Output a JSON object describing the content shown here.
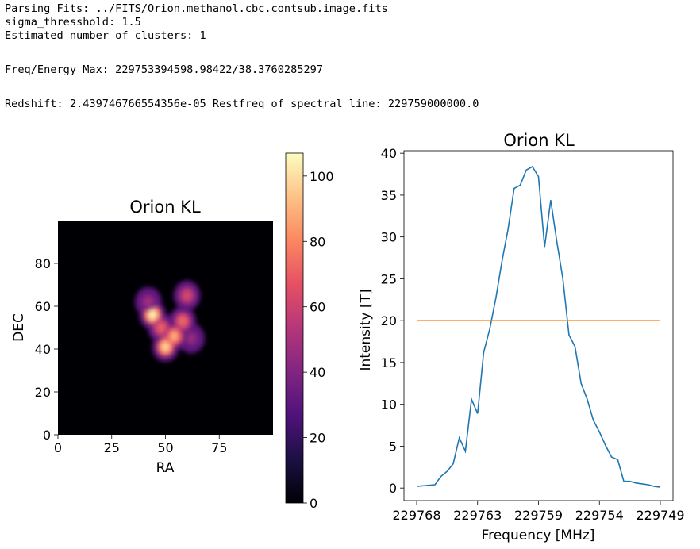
{
  "output_lines": [
    "Parsing Fits: ../FITS/Orion.methanol.cbc.contsub.image.fits",
    "sigma_thresshold: 1.5",
    "Estimated number of clusters: 1",
    "Freq/Energy Max: 229753394598.98422/38.3760285297",
    "Redshift: 2.439746766554356e-05 Restfreq of spectral line: 229759000000.0"
  ],
  "chart_data": [
    {
      "type": "heatmap",
      "title": "Orion KL",
      "xlabel": "RA",
      "ylabel": "DEC",
      "xlim": [
        0,
        100
      ],
      "ylim": [
        0,
        100
      ],
      "xticks": [
        0,
        25,
        50,
        75
      ],
      "yticks": [
        0,
        20,
        40,
        60,
        80
      ],
      "colormap": "magma",
      "colorbar": {
        "range": [
          0,
          107
        ],
        "ticks": [
          0,
          20,
          40,
          60,
          80,
          100
        ]
      },
      "blobs": [
        {
          "x": 44,
          "y": 56,
          "value": 102
        },
        {
          "x": 54,
          "y": 46,
          "value": 88
        },
        {
          "x": 50,
          "y": 41,
          "value": 96
        },
        {
          "x": 58,
          "y": 53,
          "value": 72
        },
        {
          "x": 60,
          "y": 65,
          "value": 62
        },
        {
          "x": 42,
          "y": 62,
          "value": 48
        },
        {
          "x": 62,
          "y": 45,
          "value": 45
        },
        {
          "x": 48,
          "y": 50,
          "value": 70
        }
      ]
    },
    {
      "type": "line",
      "title": "Orion KL",
      "xlabel": "Frequency [MHz]",
      "ylabel": "Intensity [T]",
      "xlim": [
        0,
        40
      ],
      "ylim": [
        -1.5,
        40.3
      ],
      "xtick_positions": [
        0,
        10,
        20,
        30,
        40
      ],
      "xtick_labels": [
        "229768",
        "229763",
        "229759",
        "229754",
        "229749"
      ],
      "yticks": [
        0,
        5,
        10,
        15,
        20,
        25,
        30,
        35,
        40
      ],
      "series": [
        {
          "color": "#1f77b4",
          "x": [
            0,
            3,
            4,
            5,
            6,
            7,
            8,
            9,
            10,
            11,
            12,
            13,
            14,
            15,
            16,
            17,
            18,
            19,
            20,
            21,
            22,
            23,
            24,
            25,
            26,
            27,
            28,
            29,
            30,
            31,
            32,
            33,
            34,
            35,
            36,
            37,
            38,
            39,
            40
          ],
          "y": [
            0.2,
            0.4,
            1.4,
            2.0,
            2.9,
            6.0,
            4.4,
            10.6,
            8.9,
            16.2,
            19.0,
            22.7,
            27.1,
            30.9,
            35.8,
            36.2,
            38.0,
            38.4,
            37.2,
            28.8,
            34.4,
            29.5,
            25.0,
            18.3,
            16.9,
            12.5,
            10.6,
            8.1,
            6.7,
            5.1,
            3.7,
            3.4,
            0.8,
            0.8,
            0.6,
            0.5,
            0.4,
            0.2,
            0.1
          ]
        },
        {
          "color": "#ff7f0e",
          "x": [
            0,
            40
          ],
          "y": [
            20,
            20
          ]
        }
      ]
    }
  ]
}
